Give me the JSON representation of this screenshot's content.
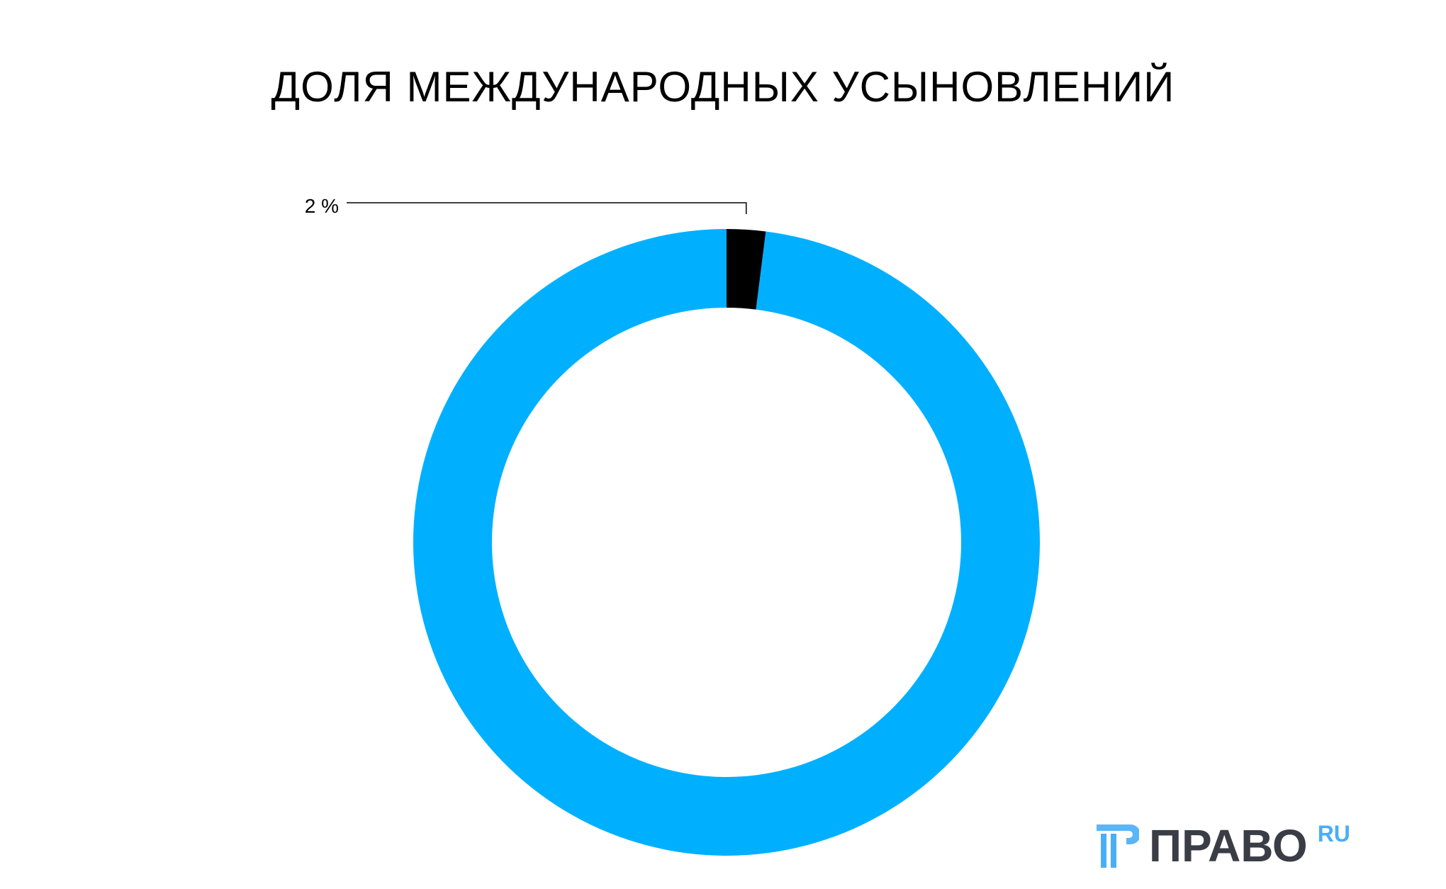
{
  "chart_data": {
    "type": "pie",
    "donut": true,
    "title": "ДОЛЯ МЕЖДУНАРОДНЫХ УСЫНОВЛЕНИЙ",
    "slices": [
      {
        "value": 98,
        "color": "#00b0ff",
        "label": ""
      },
      {
        "value": 2,
        "color": "#000000",
        "label": "2 %"
      }
    ]
  },
  "logo": {
    "text": "ПРАВО",
    "suffix": "RU",
    "text_color": "#3a3d45",
    "accent": "#4aaef5"
  }
}
